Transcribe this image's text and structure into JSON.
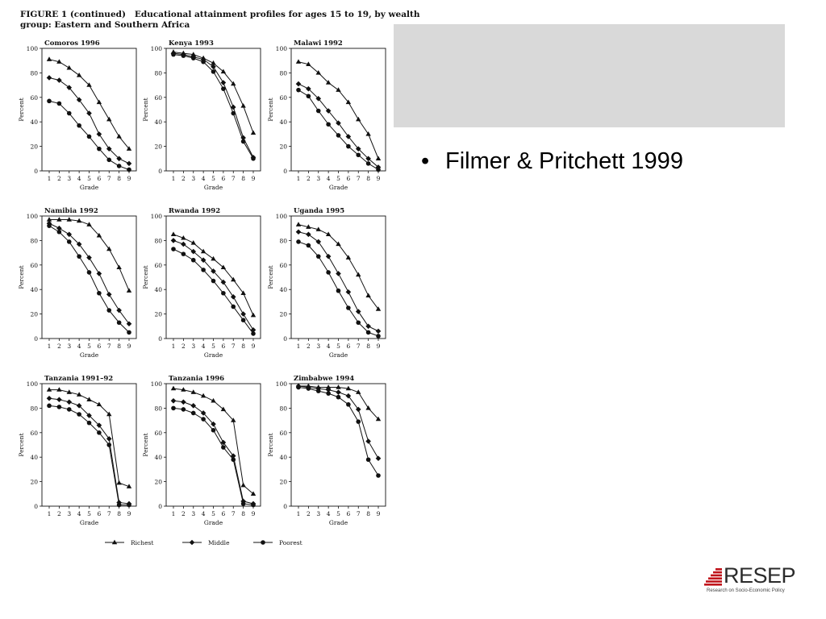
{
  "figure": {
    "title_line1": "FIGURE 1 (continued)   Educational attainment profiles for ages 15 to 19, by wealth",
    "title_line2": "group: Eastern and Southern Africa"
  },
  "slide": {
    "bullet_text": "Filmer & Pritchett 1999",
    "bullet_glyph": "•"
  },
  "logo": {
    "word": "RESEP",
    "subtitle": "Research on Socio-Economic Policy",
    "color": "#c0141b"
  },
  "chart_data": [
    {
      "type": "line",
      "title": "Comoros 1996",
      "xlabel": "Grade",
      "ylabel": "Percent",
      "categories": [
        1,
        2,
        3,
        4,
        5,
        6,
        7,
        8,
        9
      ],
      "ylim": [
        0,
        100
      ],
      "yticks": [
        0,
        20,
        40,
        60,
        80,
        100
      ],
      "series": [
        {
          "name": "Richest",
          "values": [
            91,
            89,
            84,
            78,
            70,
            56,
            42,
            28,
            18
          ]
        },
        {
          "name": "Middle",
          "values": [
            76,
            74,
            68,
            58,
            47,
            30,
            18,
            10,
            6
          ]
        },
        {
          "name": "Poorest",
          "values": [
            57,
            55,
            47,
            37,
            28,
            18,
            9,
            4,
            1
          ]
        }
      ]
    },
    {
      "type": "line",
      "title": "Kenya 1993",
      "xlabel": "Grade",
      "ylabel": "Percent",
      "categories": [
        1,
        2,
        3,
        4,
        5,
        6,
        7,
        8,
        9
      ],
      "ylim": [
        0,
        100
      ],
      "yticks": [
        0,
        20,
        40,
        60,
        80,
        100
      ],
      "series": [
        {
          "name": "Richest",
          "values": [
            97,
            96,
            95,
            92,
            88,
            81,
            71,
            53,
            31
          ]
        },
        {
          "name": "Middle",
          "values": [
            96,
            95,
            93,
            91,
            85,
            72,
            52,
            27,
            11
          ]
        },
        {
          "name": "Poorest",
          "values": [
            95,
            94,
            92,
            89,
            81,
            67,
            47,
            24,
            10
          ]
        }
      ]
    },
    {
      "type": "line",
      "title": "Malawi 1992",
      "xlabel": "Grade",
      "ylabel": "Percent",
      "categories": [
        1,
        2,
        3,
        4,
        5,
        6,
        7,
        8,
        9
      ],
      "ylim": [
        0,
        100
      ],
      "yticks": [
        0,
        20,
        40,
        60,
        80,
        100
      ],
      "series": [
        {
          "name": "Richest",
          "values": [
            89,
            87,
            80,
            72,
            66,
            56,
            42,
            30,
            10
          ]
        },
        {
          "name": "Middle",
          "values": [
            71,
            67,
            59,
            49,
            39,
            28,
            18,
            10,
            3
          ]
        },
        {
          "name": "Poorest",
          "values": [
            66,
            61,
            49,
            38,
            29,
            20,
            13,
            6,
            1
          ]
        }
      ]
    },
    {
      "type": "line",
      "title": "Namibia 1992",
      "xlabel": "Grade",
      "ylabel": "Percent",
      "categories": [
        1,
        2,
        3,
        4,
        5,
        6,
        7,
        8,
        9
      ],
      "ylim": [
        0,
        100
      ],
      "yticks": [
        0,
        20,
        40,
        60,
        80,
        100
      ],
      "series": [
        {
          "name": "Richest",
          "values": [
            97,
            97,
            97,
            96,
            93,
            84,
            73,
            58,
            39
          ]
        },
        {
          "name": "Middle",
          "values": [
            94,
            90,
            85,
            77,
            66,
            53,
            36,
            23,
            12
          ]
        },
        {
          "name": "Poorest",
          "values": [
            92,
            87,
            79,
            67,
            54,
            37,
            23,
            13,
            5
          ]
        }
      ]
    },
    {
      "type": "line",
      "title": "Rwanda 1992",
      "xlabel": "Grade",
      "ylabel": "Percent",
      "categories": [
        1,
        2,
        3,
        4,
        5,
        6,
        7,
        8,
        9
      ],
      "ylim": [
        0,
        100
      ],
      "yticks": [
        0,
        20,
        40,
        60,
        80,
        100
      ],
      "series": [
        {
          "name": "Richest",
          "values": [
            85,
            82,
            78,
            71,
            65,
            58,
            48,
            37,
            19
          ]
        },
        {
          "name": "Middle",
          "values": [
            80,
            77,
            71,
            64,
            55,
            46,
            34,
            20,
            7
          ]
        },
        {
          "name": "Poorest",
          "values": [
            73,
            69,
            64,
            56,
            47,
            37,
            26,
            15,
            4
          ]
        }
      ]
    },
    {
      "type": "line",
      "title": "Uganda 1995",
      "xlabel": "Grade",
      "ylabel": "Percent",
      "categories": [
        1,
        2,
        3,
        4,
        5,
        6,
        7,
        8,
        9
      ],
      "ylim": [
        0,
        100
      ],
      "yticks": [
        0,
        20,
        40,
        60,
        80,
        100
      ],
      "series": [
        {
          "name": "Richest",
          "values": [
            93,
            91,
            89,
            85,
            77,
            66,
            52,
            35,
            24
          ]
        },
        {
          "name": "Middle",
          "values": [
            87,
            85,
            79,
            67,
            53,
            38,
            22,
            10,
            6
          ]
        },
        {
          "name": "Poorest",
          "values": [
            79,
            76,
            67,
            54,
            39,
            25,
            13,
            5,
            2
          ]
        }
      ]
    },
    {
      "type": "line",
      "title": "Tanzania 1991–92",
      "xlabel": "Grade",
      "ylabel": "Percent",
      "categories": [
        1,
        2,
        3,
        4,
        5,
        6,
        7,
        8,
        9
      ],
      "ylim": [
        0,
        100
      ],
      "yticks": [
        0,
        20,
        40,
        60,
        80,
        100
      ],
      "series": [
        {
          "name": "Richest",
          "values": [
            95,
            95,
            93,
            91,
            87,
            83,
            75,
            19,
            16
          ]
        },
        {
          "name": "Middle",
          "values": [
            88,
            87,
            85,
            82,
            74,
            66,
            55,
            3,
            2
          ]
        },
        {
          "name": "Poorest",
          "values": [
            82,
            81,
            79,
            75,
            68,
            60,
            50,
            1,
            1
          ]
        }
      ]
    },
    {
      "type": "line",
      "title": "Tanzania 1996",
      "xlabel": "Grade",
      "ylabel": "Percent",
      "categories": [
        1,
        2,
        3,
        4,
        5,
        6,
        7,
        8,
        9
      ],
      "ylim": [
        0,
        100
      ],
      "yticks": [
        0,
        20,
        40,
        60,
        80,
        100
      ],
      "series": [
        {
          "name": "Richest",
          "values": [
            96,
            95,
            93,
            90,
            86,
            79,
            70,
            17,
            10
          ]
        },
        {
          "name": "Middle",
          "values": [
            86,
            85,
            82,
            76,
            67,
            52,
            41,
            4,
            2
          ]
        },
        {
          "name": "Poorest",
          "values": [
            80,
            79,
            76,
            71,
            62,
            48,
            38,
            2,
            1
          ]
        }
      ]
    },
    {
      "type": "line",
      "title": "Zimbabwe 1994",
      "xlabel": "Grade",
      "ylabel": "Percent",
      "categories": [
        1,
        2,
        3,
        4,
        5,
        6,
        7,
        8,
        9
      ],
      "ylim": [
        0,
        100
      ],
      "yticks": [
        0,
        20,
        40,
        60,
        80,
        100
      ],
      "series": [
        {
          "name": "Richest",
          "values": [
            98,
            98,
            97,
            97,
            97,
            96,
            93,
            80,
            71
          ]
        },
        {
          "name": "Middle",
          "values": [
            98,
            97,
            96,
            95,
            93,
            90,
            79,
            53,
            39
          ]
        },
        {
          "name": "Poorest",
          "values": [
            97,
            96,
            94,
            92,
            89,
            83,
            69,
            38,
            25
          ]
        }
      ]
    }
  ],
  "legend": {
    "position": "bottom",
    "items": [
      {
        "label": "Richest",
        "marker": "triangle"
      },
      {
        "label": "Middle",
        "marker": "diamond"
      },
      {
        "label": "Poorest",
        "marker": "circle"
      }
    ]
  }
}
